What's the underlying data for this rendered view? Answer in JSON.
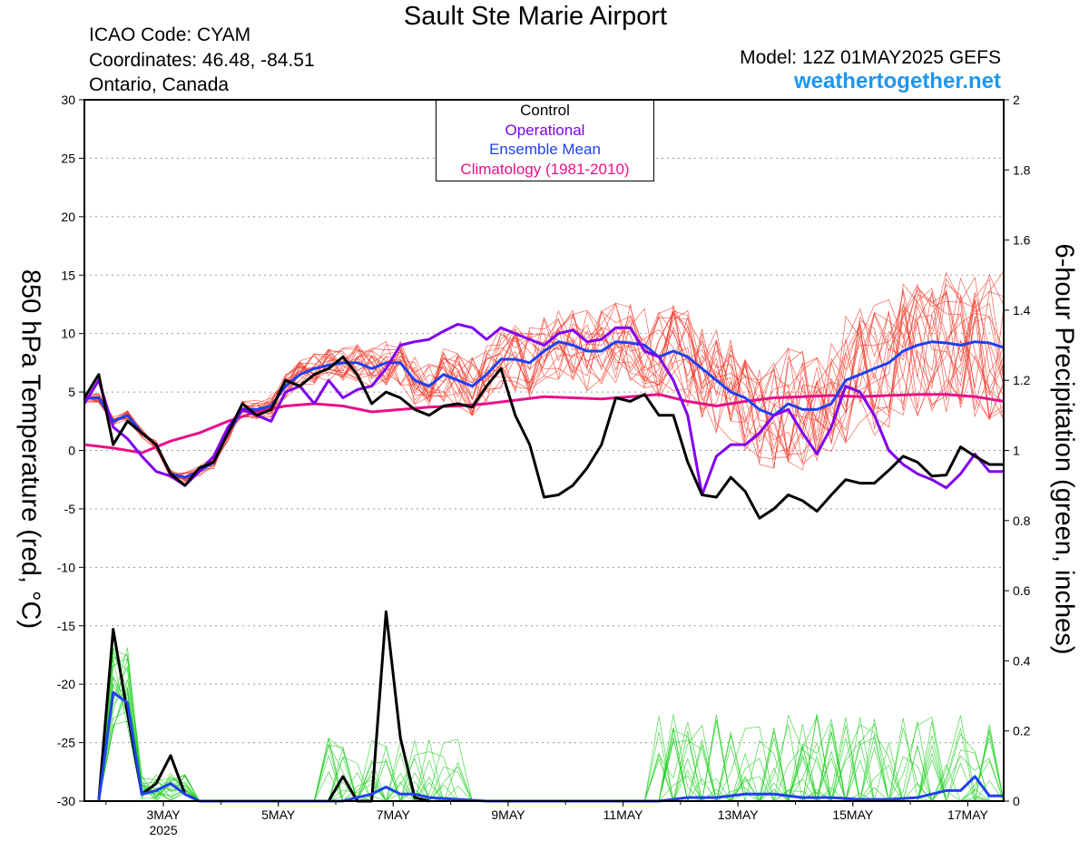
{
  "header": {
    "title": "Sault Ste Marie Airport",
    "icao": "ICAO Code: CYAM",
    "coordinates": "Coordinates: 46.48, -84.51",
    "region": "Ontario, Canada",
    "model": "Model: 12Z 01MAY2025 GEFS",
    "site": "weathertogether.net"
  },
  "colors": {
    "control": "#000000",
    "operational": "#8000ee",
    "ensemble_mean": "#2040f0",
    "climatology": "#e8108a",
    "members_temp": "#f03020",
    "members_precip": "#20d020",
    "site": "#1e96f0"
  },
  "chart_data": {
    "type": "line",
    "ylabel_left": "850 hPa Temperature (red, °C)",
    "ylabel_right": "6-hour Precipitation (green, inches)",
    "ylim_left": [
      -30,
      30
    ],
    "ylim_right": [
      0,
      2
    ],
    "yticks_left": [
      "30",
      "25",
      "20",
      "15",
      "10",
      "5",
      "0",
      "-5",
      "-10",
      "-15",
      "-20",
      "-25",
      "-30"
    ],
    "yticks_right": [
      "2",
      "1.8",
      "1.6",
      "1.4",
      "1.2",
      "1",
      "0.8",
      "0.6",
      "0.4",
      "0.2",
      "0"
    ],
    "grid": "horizontal dotted",
    "x_range_days": [
      1.625,
      17.625
    ],
    "x_ticks": [
      {
        "day": 3,
        "label": "3MAY",
        "sublabel": "2025"
      },
      {
        "day": 5,
        "label": "5MAY"
      },
      {
        "day": 7,
        "label": "7MAY"
      },
      {
        "day": 9,
        "label": "9MAY"
      },
      {
        "day": 11,
        "label": "11MAY"
      },
      {
        "day": 13,
        "label": "13MAY"
      },
      {
        "day": 15,
        "label": "15MAY"
      },
      {
        "day": 17,
        "label": "17MAY"
      }
    ],
    "legend": {
      "position": "top-center",
      "entries": [
        {
          "name": "Control",
          "color": "#000000"
        },
        {
          "name": "Operational",
          "color": "#8000ee"
        },
        {
          "name": "Ensemble Mean",
          "color": "#2040f0"
        },
        {
          "name": "Climatology (1981-2010)",
          "color": "#e8108a"
        }
      ]
    },
    "temperature_series": [
      {
        "name": "Control",
        "x": [
          1.625,
          1.875,
          2.125,
          2.375,
          2.625,
          2.875,
          3.125,
          3.375,
          3.625,
          3.875,
          4.125,
          4.375,
          4.625,
          4.875,
          5.125,
          5.375,
          5.625,
          5.875,
          6.125,
          6.375,
          6.625,
          6.875,
          7.125,
          7.375,
          7.625,
          7.875,
          8.125,
          8.375,
          8.625,
          8.875,
          9.125,
          9.375,
          9.625,
          9.875,
          10.125,
          10.375,
          10.625,
          10.875,
          11.125,
          11.375,
          11.625,
          11.875,
          12.125,
          12.375,
          12.625,
          12.875,
          13.125,
          13.375,
          13.625,
          13.875,
          14.125,
          14.375,
          14.625,
          14.875,
          15.125,
          15.375,
          15.625,
          15.875,
          16.125,
          16.375,
          16.625,
          16.875,
          17.125,
          17.375,
          17.625
        ],
        "y": [
          4.5,
          6.5,
          0.5,
          2.5,
          1.5,
          0.5,
          -2,
          -3,
          -1.5,
          -1,
          1.5,
          4,
          3,
          3.5,
          6,
          5.5,
          6.5,
          7,
          8,
          6.5,
          4,
          5,
          4.5,
          3.5,
          3,
          3.8,
          4,
          3.7,
          5.5,
          7,
          3,
          0.5,
          -4,
          -3.8,
          -3,
          -1.5,
          0.5,
          4.5,
          4.2,
          4.8,
          3,
          3,
          -1,
          -3.8,
          -4,
          -2.3,
          -3.5,
          -5.8,
          -5,
          -3.8,
          -4.3,
          -5.2,
          -3.8,
          -2.5,
          -2.8,
          -2.8,
          -1.7,
          -0.5,
          -1,
          -2.2,
          -2.1,
          0.3,
          -0.5,
          -1.2,
          -1.2
        ]
      },
      {
        "name": "Operational",
        "x": [
          1.625,
          1.875,
          2.125,
          2.375,
          2.625,
          2.875,
          3.125,
          3.375,
          3.625,
          3.875,
          4.125,
          4.375,
          4.625,
          4.875,
          5.125,
          5.375,
          5.625,
          5.875,
          6.125,
          6.375,
          6.625,
          6.875,
          7.125,
          7.375,
          7.625,
          7.875,
          8.125,
          8.375,
          8.625,
          8.875,
          9.125,
          9.375,
          9.625,
          9.875,
          10.125,
          10.375,
          10.625,
          10.875,
          11.125,
          11.375,
          11.625,
          11.875,
          12.125,
          12.375,
          12.625,
          12.875,
          13.125,
          13.375,
          13.625,
          13.875,
          14.125,
          14.375,
          14.625,
          14.875,
          15.125,
          15.375,
          15.625,
          15.875,
          16.125,
          16.375,
          16.625,
          16.875,
          17.125,
          17.375,
          17.625
        ],
        "y": [
          4,
          6,
          2,
          1,
          -0.5,
          -1.8,
          -2.2,
          -3,
          -1.8,
          -0.5,
          2,
          3.5,
          3,
          2.5,
          5,
          5.5,
          4,
          6,
          4.5,
          5.2,
          5.5,
          7,
          9,
          9.3,
          9.5,
          10.2,
          10.8,
          10.5,
          9.5,
          10.5,
          10,
          9.5,
          9,
          10,
          10.3,
          9.3,
          9.5,
          10.5,
          10.5,
          8.5,
          8,
          6,
          3,
          -3.8,
          -0.5,
          0.5,
          0.5,
          1.5,
          3,
          3.5,
          1.5,
          -0.3,
          2,
          5.5,
          5,
          3,
          0,
          -1.2,
          -2,
          -2.5,
          -3.2,
          -2,
          -0.3,
          -1.8,
          -1.8
        ]
      },
      {
        "name": "Ensemble Mean",
        "x": [
          1.625,
          1.875,
          2.125,
          2.375,
          2.625,
          2.875,
          3.125,
          3.375,
          3.625,
          3.875,
          4.125,
          4.375,
          4.625,
          4.875,
          5.125,
          5.375,
          5.625,
          5.875,
          6.125,
          6.375,
          6.625,
          6.875,
          7.125,
          7.375,
          7.625,
          7.875,
          8.125,
          8.375,
          8.625,
          8.875,
          9.125,
          9.375,
          9.625,
          9.875,
          10.125,
          10.375,
          10.625,
          10.875,
          11.125,
          11.375,
          11.625,
          11.875,
          12.125,
          12.375,
          12.625,
          12.875,
          13.125,
          13.375,
          13.625,
          13.875,
          14.125,
          14.375,
          14.625,
          14.875,
          15.125,
          15.375,
          15.625,
          15.875,
          16.125,
          16.375,
          16.625,
          16.875,
          17.125,
          17.375,
          17.625
        ],
        "y": [
          4.5,
          4.5,
          2.5,
          3,
          1.5,
          0.5,
          -2,
          -2.3,
          -1.8,
          -1,
          1.5,
          3.5,
          3.5,
          3.8,
          5.5,
          6.5,
          7,
          7.3,
          7.5,
          7.5,
          7,
          7.5,
          7.5,
          6,
          5.5,
          6.5,
          6,
          5.5,
          6.5,
          7.8,
          7.8,
          7.5,
          8.5,
          9.3,
          9,
          8.5,
          8.5,
          9.3,
          9.2,
          9,
          8,
          8.5,
          8,
          7,
          6,
          5,
          4.5,
          3.5,
          3,
          4,
          3.5,
          3.5,
          4,
          6,
          6.5,
          7,
          7.5,
          8.5,
          9,
          9.3,
          9.2,
          9,
          9.3,
          9.2,
          8.8
        ]
      },
      {
        "name": "Climatology (1981-2010)",
        "x": [
          1.625,
          2.125,
          2.625,
          3.125,
          3.625,
          4.125,
          4.625,
          5.125,
          5.625,
          6.125,
          6.625,
          7.125,
          7.625,
          8.125,
          8.625,
          9.125,
          9.625,
          10.125,
          10.625,
          11.125,
          11.625,
          12.125,
          12.625,
          13.125,
          13.625,
          14.125,
          14.625,
          15.125,
          15.625,
          16.125,
          16.625,
          17.125,
          17.625
        ],
        "y": [
          0.5,
          0.2,
          -0.2,
          0.8,
          1.5,
          2.5,
          3.3,
          3.8,
          4,
          3.8,
          3.3,
          3.5,
          3.7,
          3.8,
          4,
          4.3,
          4.6,
          4.5,
          4.4,
          4.6,
          4.8,
          4.2,
          3.8,
          4.2,
          4.5,
          4.6,
          4.7,
          4.6,
          4.7,
          4.8,
          4.8,
          4.6,
          4.2
        ]
      }
    ],
    "precipitation_series": [
      {
        "name": "Control",
        "x": [
          1.875,
          2.125,
          2.375,
          2.625,
          2.875,
          3.125,
          3.375,
          3.625,
          5.625,
          5.875,
          6.125,
          6.375,
          6.625,
          6.875,
          7.125,
          7.375,
          7.625
        ],
        "y": [
          0,
          0.49,
          0.25,
          0.02,
          0.05,
          0.13,
          0.02,
          0,
          0,
          0,
          0.07,
          0,
          0,
          0.54,
          0.18,
          0.01,
          0
        ]
      },
      {
        "name": "Ensemble Mean",
        "x": [
          1.875,
          2.125,
          2.375,
          2.625,
          2.875,
          3.125,
          3.375,
          3.625,
          6.125,
          6.375,
          6.625,
          6.875,
          7.125,
          7.375,
          7.625,
          8.625,
          11.625,
          12.125,
          12.625,
          13.125,
          13.625,
          14.125,
          14.625,
          15.125,
          15.625,
          16.125,
          16.625,
          16.875,
          17.125,
          17.375,
          17.625
        ],
        "y": [
          0,
          0.31,
          0.28,
          0.02,
          0.03,
          0.05,
          0.02,
          0,
          0,
          0.01,
          0.02,
          0.04,
          0.02,
          0.02,
          0.01,
          0,
          0,
          0.01,
          0.01,
          0.02,
          0.02,
          0.01,
          0.01,
          0.005,
          0.005,
          0.01,
          0.03,
          0.03,
          0.07,
          0.015,
          0.015
        ]
      },
      {
        "name": "Operational",
        "x": [
          1.875,
          2.125,
          2.375,
          2.625,
          2.875,
          3.125,
          3.375,
          3.625
        ],
        "y": [
          0,
          0.29,
          0.27,
          0.02,
          0.02,
          0.04,
          0.01,
          0
        ]
      }
    ]
  }
}
